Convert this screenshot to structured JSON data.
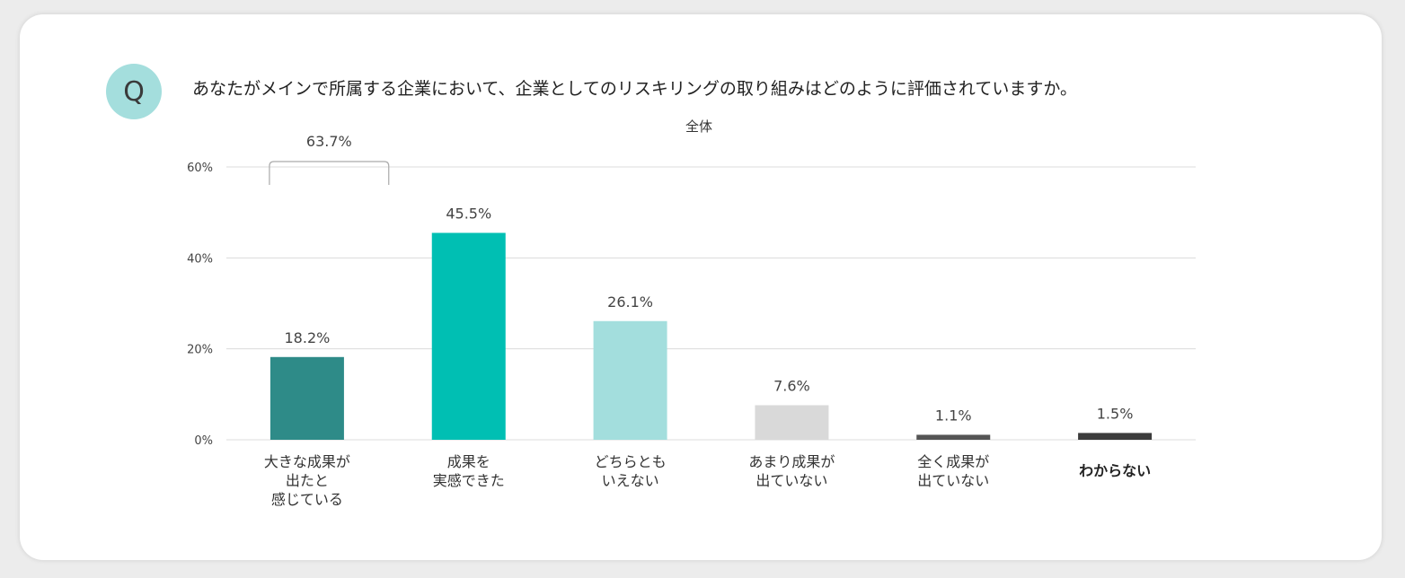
{
  "question": {
    "badge": "Q",
    "text": "あなたがメインで所属する企業において、企業としてのリスキリングの取り組みはどのように評価されていますか。"
  },
  "colors": {
    "badge_bg": "#a4dedd",
    "grid": "#dcdcdc",
    "bracket": "#aaaaaa"
  },
  "chart_data": {
    "type": "bar",
    "title": "全体",
    "xlabel": "",
    "ylabel": "",
    "ylim": [
      0,
      60
    ],
    "y_ticks": [
      {
        "value": 0,
        "label": "0%"
      },
      {
        "value": 20,
        "label": "20%"
      },
      {
        "value": 40,
        "label": "40%"
      },
      {
        "value": 60,
        "label": "60%"
      }
    ],
    "grid": true,
    "categories": [
      {
        "lines": [
          "大きな成果が",
          "出たと",
          "感じている"
        ],
        "bold": false
      },
      {
        "lines": [
          "成果を",
          "実感できた"
        ],
        "bold": false
      },
      {
        "lines": [
          "どちらとも",
          "いえない"
        ],
        "bold": false
      },
      {
        "lines": [
          "あまり成果が",
          "出ていない"
        ],
        "bold": false
      },
      {
        "lines": [
          "全く成果が",
          "出ていない"
        ],
        "bold": false
      },
      {
        "lines": [
          "わからない"
        ],
        "bold": true
      }
    ],
    "values": [
      18.2,
      45.5,
      26.1,
      7.6,
      1.1,
      1.5
    ],
    "value_labels": [
      "18.2%",
      "45.5%",
      "26.1%",
      "7.6%",
      "1.1%",
      "1.5%"
    ],
    "bar_colors": [
      "#2e8b88",
      "#00bfb3",
      "#a3dedd",
      "#d9d9d9",
      "#555555",
      "#3c3c3c"
    ],
    "annotation": {
      "label": "63.7%",
      "covers": [
        0,
        1
      ]
    }
  }
}
